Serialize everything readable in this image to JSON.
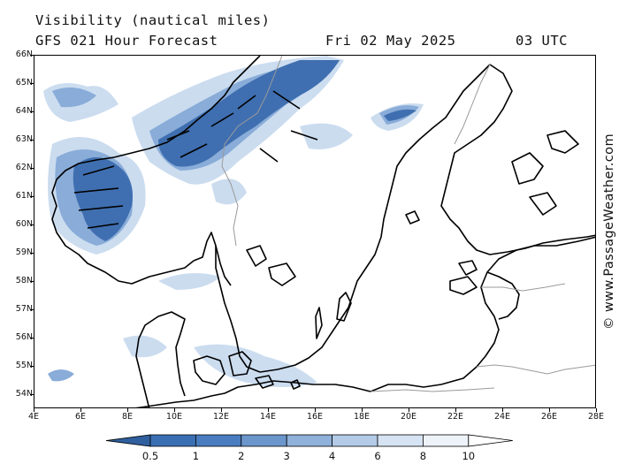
{
  "header": {
    "title": "Visibility (nautical miles)",
    "subtitle": "GFS 021 Hour Forecast",
    "date": "Fri 02 May 2025",
    "time": "03 UTC"
  },
  "map": {
    "lat_labels": [
      "66N",
      "65N",
      "64N",
      "63N",
      "62N",
      "61N",
      "60N",
      "59N",
      "58N",
      "57N",
      "56N",
      "55N",
      "54N"
    ],
    "lon_labels": [
      "4E",
      "6E",
      "8E",
      "10E",
      "12E",
      "14E",
      "16E",
      "18E",
      "20E",
      "22E",
      "24E",
      "26E",
      "28E"
    ],
    "lat_range": [
      53.6,
      66.0
    ],
    "lon_range": [
      4,
      28
    ],
    "credit": "© www.PassageWeather.com"
  },
  "legend": {
    "labels": [
      "0.5",
      "1",
      "2",
      "3",
      "4",
      "6",
      "8",
      "10"
    ],
    "colors": [
      "#3b6fb3",
      "#4a7dbf",
      "#6b96cc",
      "#8fb1da",
      "#b3cbe7",
      "#d6e3f2",
      "#eef3fa",
      "#ffffff"
    ]
  },
  "colors": {
    "coast": "#000000",
    "border": "#9a9a9a",
    "fog_dense": "#3f6fb0",
    "fog_mid": "#89acd8",
    "fog_light": "#c9dbef"
  }
}
